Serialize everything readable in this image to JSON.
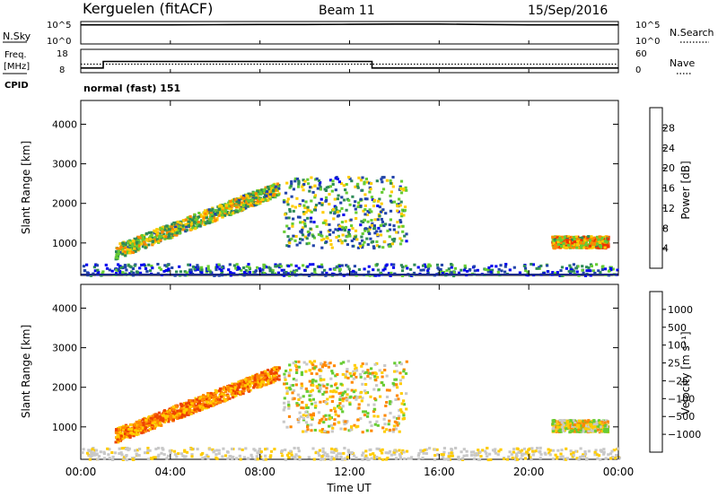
{
  "header": {
    "station": "Kerguelen (fitACF)",
    "beam": "Beam 11",
    "date": "15/Sep/2016"
  },
  "noise_panel": {
    "left_label": "N.Sky",
    "right_label": "N.Search",
    "left_ticks": [
      "10^5",
      "10^0"
    ],
    "right_ticks": [
      "10^5",
      "10^0"
    ],
    "sky_level_log": [
      4.6,
      4.6,
      4.6,
      4.65,
      4.7,
      4.7,
      4.75,
      4.8,
      4.8,
      4.7,
      4.6,
      4.6,
      4.6
    ]
  },
  "freq_panel": {
    "left_label_top": "Freq.",
    "left_label_mid": "[MHz]",
    "left_label_bottom": "CPID",
    "right_label": "Nave",
    "left_ticks": [
      "18",
      "8"
    ],
    "right_ticks": [
      "60",
      "0"
    ],
    "freq_steps": [
      {
        "t0": 0.0,
        "t1": 1.0,
        "mhz": 10.0
      },
      {
        "t0": 1.0,
        "t1": 13.0,
        "mhz": 12.8
      },
      {
        "t0": 13.0,
        "t1": 24.0,
        "mhz": 10.0
      }
    ],
    "nave_level": 22
  },
  "cpid_label": "normal (fast) 151",
  "xaxis": {
    "label": "Time UT",
    "ticks": [
      "00:00",
      "04:00",
      "08:00",
      "12:00",
      "16:00",
      "20:00",
      "00:00"
    ]
  },
  "chart_data": [
    {
      "type": "heatmap",
      "ylabel": "Slant Range [km]",
      "ylim": [
        180,
        4600
      ],
      "yticks": [
        "1000",
        "2000",
        "3000",
        "4000"
      ],
      "xlim_hours": [
        0,
        24
      ],
      "colorbar": {
        "label": "Power [dB]",
        "ticks": [
          "4",
          "8",
          "12",
          "16",
          "20",
          "24",
          "28"
        ],
        "colors": [
          "#0000ee",
          "#2244aa",
          "#2e8b57",
          "#66cc33",
          "#ffcc00",
          "#ff8800",
          "#ee3300",
          "#dd0000"
        ]
      },
      "regions": [
        {
          "t0": 1.5,
          "t1": 8.8,
          "r0": 800,
          "r1": 2400,
          "level": 3
        },
        {
          "t0": 9.0,
          "t1": 14.5,
          "r0": 900,
          "r1": 2700,
          "level": 2
        },
        {
          "t0": 21.0,
          "t1": 23.5,
          "r0": 900,
          "r1": 1200,
          "level": 4
        },
        {
          "t0": 0.0,
          "t1": 24.0,
          "r0": 200,
          "r1": 500,
          "level": 1
        }
      ]
    },
    {
      "type": "heatmap",
      "ylabel": "Slant Range [km]",
      "ylim": [
        180,
        4600
      ],
      "yticks": [
        "1000",
        "2000",
        "3000",
        "4000"
      ],
      "xlim_hours": [
        0,
        24
      ],
      "colorbar": {
        "label": "Velocity [m s⁻¹]",
        "ticks": [
          "1000",
          "500",
          "100",
          "25",
          "−25",
          "−100",
          "−500",
          "−1000"
        ],
        "colors": [
          "#0022cc",
          "#3366aa",
          "#2e8b57",
          "#66cc33",
          "#c8c8c8",
          "#ffcc00",
          "#ff8800",
          "#ee4400",
          "#dd0000"
        ]
      },
      "regions": [
        {
          "t0": 1.5,
          "t1": 8.8,
          "r0": 800,
          "r1": 2400,
          "velocity": -300
        },
        {
          "t0": 9.0,
          "t1": 14.5,
          "r0": 900,
          "r1": 2700,
          "velocity": 0
        },
        {
          "t0": 21.0,
          "t1": 23.5,
          "r0": 900,
          "r1": 1200,
          "velocity": 0
        },
        {
          "t0": 0.0,
          "t1": 24.0,
          "r0": 200,
          "r1": 500,
          "velocity": 0
        }
      ]
    }
  ]
}
